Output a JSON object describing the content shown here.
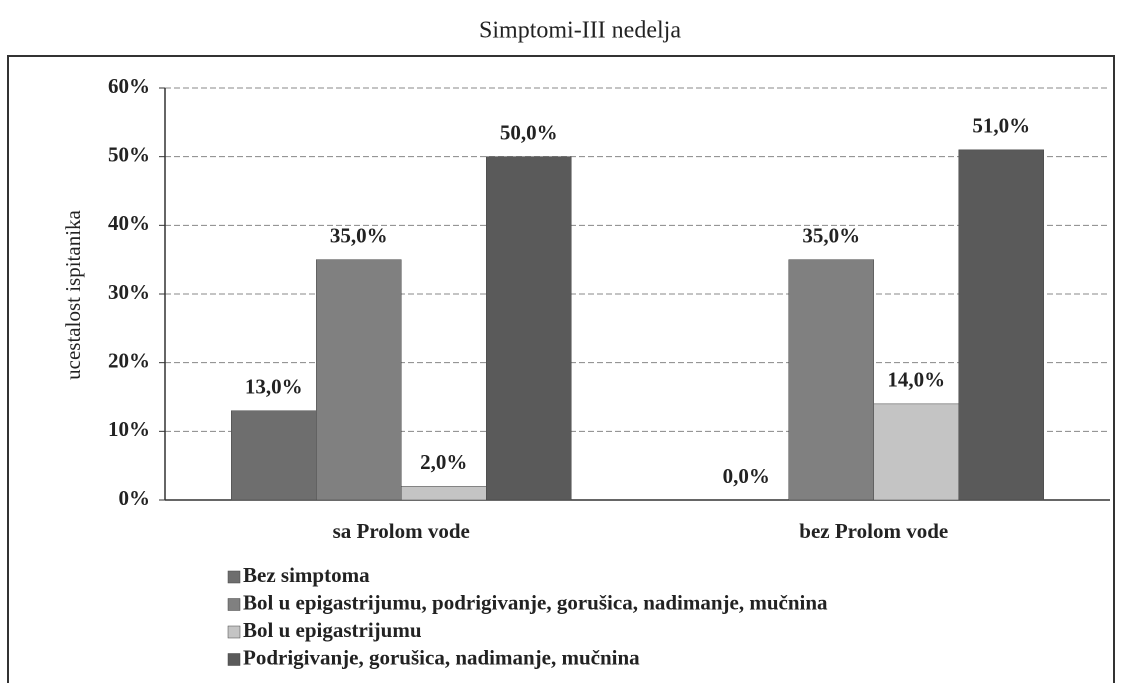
{
  "chart_data": {
    "type": "bar",
    "title": "Simptomi-III nedelja",
    "y_label": "ucestalost ispitanika",
    "categories": [
      "sa Prolom vode",
      "bez Prolom vode"
    ],
    "series": [
      {
        "name": "Bez simptoma",
        "color": "#6e6e6e",
        "values": [
          13,
          0
        ],
        "value_labels": [
          "13,0%",
          "0,0%"
        ]
      },
      {
        "name": "Bol u epigastrijumu, podrigivanje, gorušica, nadimanje, mučnina",
        "color": "#808080",
        "values": [
          35,
          35
        ],
        "value_labels": [
          "35,0%",
          "35,0%"
        ]
      },
      {
        "name": "Bol u epigastrijumu",
        "color": "#c4c4c4",
        "values": [
          2,
          14
        ],
        "value_labels": [
          "2,0%",
          "14,0%"
        ]
      },
      {
        "name": "Podrigivanje, gorušica, nadimanje, mučnina",
        "color": "#5a5a5a",
        "values": [
          50,
          51
        ],
        "value_labels": [
          "50,0%",
          "51,0%"
        ]
      }
    ],
    "ylim": [
      0,
      60
    ],
    "yticks": [
      {
        "value": 0,
        "label": "0%"
      },
      {
        "value": 10,
        "label": "10%"
      },
      {
        "value": 20,
        "label": "20%"
      },
      {
        "value": 30,
        "label": "30%"
      },
      {
        "value": 40,
        "label": "40%"
      },
      {
        "value": 50,
        "label": "50%"
      },
      {
        "value": 60,
        "label": "60%"
      }
    ],
    "grid": true
  }
}
